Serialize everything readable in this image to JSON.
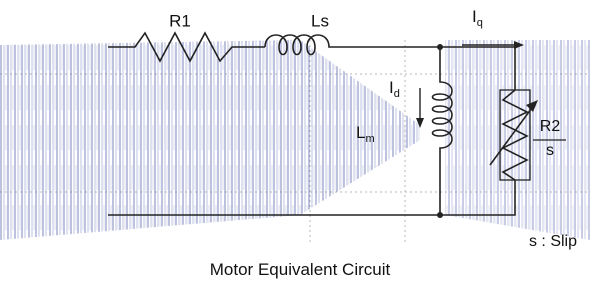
{
  "labels": {
    "r1": "R1",
    "ls": "Ls",
    "iq": {
      "main": "I",
      "sub": "q"
    },
    "id": {
      "main": "I",
      "sub": "d"
    },
    "lm": {
      "main": "L",
      "sub": "m"
    },
    "r2": {
      "numerator": "R2",
      "denominator": "s"
    },
    "slip": "s : Slip"
  },
  "caption": "Motor Equivalent Circuit"
}
